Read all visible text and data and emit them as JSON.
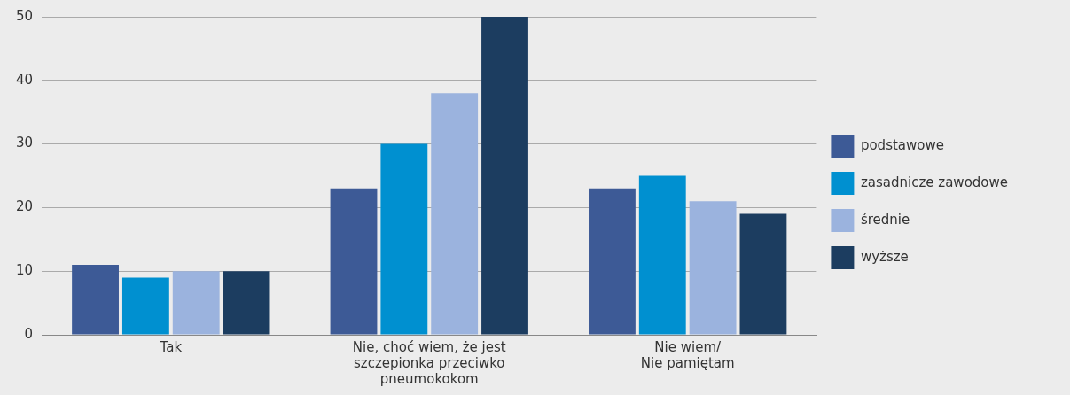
{
  "chart_data": {
    "type": "bar",
    "categories": [
      "Tak",
      "Nie, choć wiem, że jest\nszczepionka przeciwko\npneumokokom",
      "Nie wiem/\nNie pamiętam"
    ],
    "series": [
      {
        "name": "podstawowe",
        "color": "#3d5a96",
        "values": [
          11,
          23,
          23
        ]
      },
      {
        "name": "zasadnicze zawodowe",
        "color": "#0090d0",
        "values": [
          9,
          30,
          25
        ]
      },
      {
        "name": "średnie",
        "color": "#9bb3de",
        "values": [
          10,
          38,
          21
        ]
      },
      {
        "name": "wyższe",
        "color": "#1c3d60",
        "values": [
          10,
          50,
          19
        ]
      }
    ],
    "ylim": [
      0,
      50
    ],
    "yticks": [
      0,
      10,
      20,
      30,
      40,
      50
    ],
    "grid": "y",
    "legend": "right"
  }
}
